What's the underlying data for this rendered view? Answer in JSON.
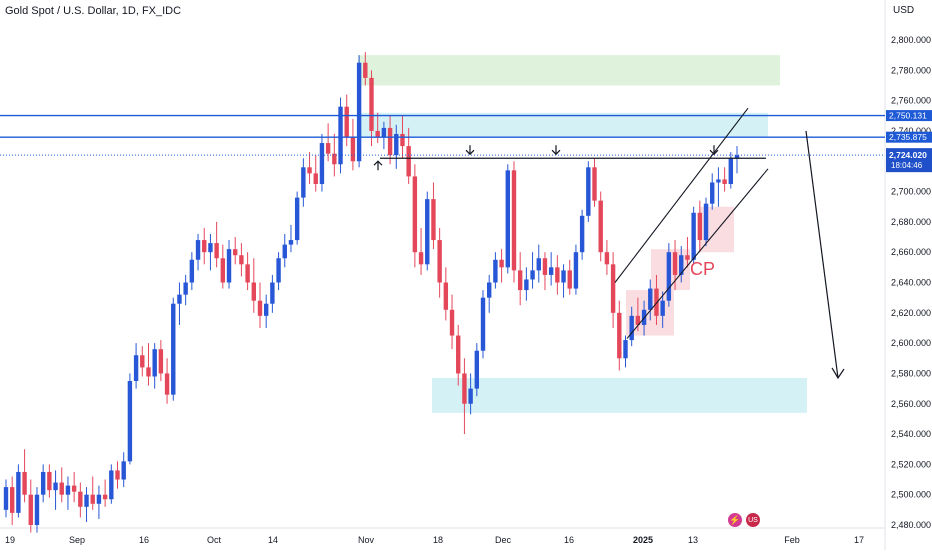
{
  "header": {
    "symbol_title": "Gold Spot / U.S. Dollar, 1D, FX_IDC",
    "currency": "USD"
  },
  "price_axis": {
    "ticks": [
      "2,480.000",
      "2,500.000",
      "2,520.000",
      "2,540.000",
      "2,560.000",
      "2,580.000",
      "2,600.000",
      "2,620.000",
      "2,640.000",
      "2,660.000",
      "2,680.000",
      "2,700.000",
      "2,720.000",
      "2,740.000",
      "2,760.000",
      "2,780.000",
      "2,800.000"
    ]
  },
  "time_axis": {
    "ticks": [
      "19",
      "Sep",
      "16",
      "Oct",
      "14",
      "Nov",
      "18",
      "Dec",
      "16",
      "2025",
      "13",
      "Feb",
      "17"
    ]
  },
  "price_tags": {
    "level_upper": "2,750.131",
    "level_lower": "2,735.875",
    "last_price": "2,724.020",
    "countdown": "18:04:46"
  },
  "annotations": {
    "pattern_label": "CP"
  },
  "colors": {
    "up": "#2757d6",
    "down": "#e5475a",
    "supply_zone": "#d8f0d6",
    "blue_zone": "#cdeff5",
    "pink_box": "#f9d5da",
    "level_line": "#1e5ad6"
  },
  "icons": [
    "lightning-icon",
    "us-flag-icon"
  ],
  "chart_data": {
    "type": "candlestick",
    "title": "Gold Spot / U.S. Dollar, 1D, FX_IDC",
    "ylabel": "USD",
    "ylim": [
      2475,
      2815
    ],
    "xlabel": "",
    "horizontal_levels": [
      2750.131,
      2735.875,
      2724.02
    ],
    "neckline": 2722,
    "zones": [
      {
        "name": "upper-green-zone",
        "y": [
          2770,
          2790
        ]
      },
      {
        "name": "upper-blue-zone",
        "y": [
          2736,
          2752
        ]
      },
      {
        "name": "lower-blue-zone",
        "y": [
          2554,
          2577
        ]
      }
    ],
    "ohlc": [
      [
        2490,
        2510,
        2485,
        2505
      ],
      [
        2505,
        2512,
        2480,
        2488
      ],
      [
        2488,
        2520,
        2485,
        2515
      ],
      [
        2515,
        2530,
        2495,
        2500
      ],
      [
        2500,
        2510,
        2475,
        2480
      ],
      [
        2480,
        2505,
        2475,
        2500
      ],
      [
        2500,
        2520,
        2495,
        2515
      ],
      [
        2515,
        2520,
        2498,
        2503
      ],
      [
        2503,
        2516,
        2490,
        2508
      ],
      [
        2508,
        2518,
        2495,
        2500
      ],
      [
        2500,
        2512,
        2490,
        2506
      ],
      [
        2506,
        2515,
        2495,
        2502
      ],
      [
        2502,
        2508,
        2485,
        2492
      ],
      [
        2492,
        2505,
        2482,
        2500
      ],
      [
        2500,
        2512,
        2490,
        2494
      ],
      [
        2494,
        2506,
        2484,
        2500
      ],
      [
        2500,
        2510,
        2492,
        2497
      ],
      [
        2497,
        2520,
        2494,
        2516
      ],
      [
        2516,
        2522,
        2504,
        2510
      ],
      [
        2510,
        2528,
        2505,
        2522
      ],
      [
        2522,
        2580,
        2520,
        2575
      ],
      [
        2575,
        2600,
        2570,
        2592
      ],
      [
        2592,
        2598,
        2578,
        2584
      ],
      [
        2584,
        2600,
        2572,
        2578
      ],
      [
        2578,
        2600,
        2570,
        2596
      ],
      [
        2596,
        2602,
        2575,
        2580
      ],
      [
        2580,
        2590,
        2560,
        2566
      ],
      [
        2566,
        2630,
        2562,
        2626
      ],
      [
        2626,
        2640,
        2612,
        2632
      ],
      [
        2632,
        2645,
        2625,
        2640
      ],
      [
        2640,
        2660,
        2635,
        2655
      ],
      [
        2655,
        2672,
        2648,
        2668
      ],
      [
        2668,
        2676,
        2652,
        2660
      ],
      [
        2660,
        2672,
        2648,
        2666
      ],
      [
        2666,
        2680,
        2650,
        2656
      ],
      [
        2656,
        2665,
        2636,
        2640
      ],
      [
        2640,
        2668,
        2636,
        2662
      ],
      [
        2662,
        2670,
        2652,
        2658
      ],
      [
        2658,
        2666,
        2644,
        2652
      ],
      [
        2652,
        2660,
        2635,
        2640
      ],
      [
        2640,
        2656,
        2620,
        2628
      ],
      [
        2628,
        2640,
        2610,
        2618
      ],
      [
        2618,
        2632,
        2610,
        2626
      ],
      [
        2626,
        2645,
        2620,
        2640
      ],
      [
        2640,
        2660,
        2635,
        2656
      ],
      [
        2656,
        2672,
        2650,
        2665
      ],
      [
        2665,
        2678,
        2660,
        2668
      ],
      [
        2668,
        2700,
        2665,
        2696
      ],
      [
        2696,
        2722,
        2690,
        2716
      ],
      [
        2716,
        2726,
        2705,
        2712
      ],
      [
        2712,
        2724,
        2700,
        2705
      ],
      [
        2705,
        2738,
        2700,
        2732
      ],
      [
        2732,
        2745,
        2720,
        2725
      ],
      [
        2725,
        2738,
        2710,
        2718
      ],
      [
        2718,
        2762,
        2712,
        2756
      ],
      [
        2756,
        2764,
        2730,
        2736
      ],
      [
        2736,
        2748,
        2714,
        2720
      ],
      [
        2720,
        2790,
        2716,
        2785
      ],
      [
        2785,
        2792,
        2770,
        2775
      ],
      [
        2775,
        2780,
        2730,
        2740
      ],
      [
        2740,
        2752,
        2732,
        2736
      ],
      [
        2736,
        2746,
        2728,
        2742
      ],
      [
        2742,
        2750,
        2718,
        2724
      ],
      [
        2724,
        2744,
        2715,
        2738
      ],
      [
        2738,
        2750,
        2722,
        2730
      ],
      [
        2730,
        2742,
        2705,
        2710
      ],
      [
        2710,
        2718,
        2650,
        2660
      ],
      [
        2660,
        2676,
        2645,
        2652
      ],
      [
        2652,
        2700,
        2648,
        2695
      ],
      [
        2695,
        2706,
        2662,
        2668
      ],
      [
        2668,
        2676,
        2630,
        2640
      ],
      [
        2640,
        2650,
        2615,
        2622
      ],
      [
        2622,
        2632,
        2596,
        2605
      ],
      [
        2605,
        2612,
        2572,
        2580
      ],
      [
        2580,
        2590,
        2540,
        2560
      ],
      [
        2560,
        2580,
        2553,
        2570
      ],
      [
        2570,
        2600,
        2565,
        2595
      ],
      [
        2595,
        2635,
        2590,
        2630
      ],
      [
        2630,
        2645,
        2620,
        2640
      ],
      [
        2640,
        2660,
        2636,
        2655
      ],
      [
        2655,
        2662,
        2640,
        2650
      ],
      [
        2650,
        2718,
        2646,
        2714
      ],
      [
        2714,
        2720,
        2640,
        2648
      ],
      [
        2648,
        2660,
        2625,
        2635
      ],
      [
        2635,
        2650,
        2628,
        2642
      ],
      [
        2642,
        2660,
        2636,
        2648
      ],
      [
        2648,
        2665,
        2640,
        2656
      ],
      [
        2656,
        2660,
        2635,
        2645
      ],
      [
        2645,
        2660,
        2638,
        2650
      ],
      [
        2650,
        2658,
        2632,
        2640
      ],
      [
        2640,
        2652,
        2630,
        2648
      ],
      [
        2648,
        2655,
        2632,
        2636
      ],
      [
        2636,
        2665,
        2632,
        2660
      ],
      [
        2660,
        2688,
        2655,
        2684
      ],
      [
        2684,
        2720,
        2680,
        2716
      ],
      [
        2716,
        2722,
        2690,
        2694
      ],
      [
        2694,
        2700,
        2654,
        2660
      ],
      [
        2660,
        2668,
        2645,
        2652
      ],
      [
        2652,
        2660,
        2610,
        2620
      ],
      [
        2620,
        2628,
        2582,
        2590
      ],
      [
        2590,
        2605,
        2584,
        2602
      ],
      [
        2602,
        2624,
        2598,
        2618
      ],
      [
        2618,
        2630,
        2608,
        2612
      ],
      [
        2612,
        2628,
        2605,
        2622
      ],
      [
        2622,
        2642,
        2615,
        2636
      ],
      [
        2636,
        2645,
        2612,
        2618
      ],
      [
        2618,
        2634,
        2610,
        2628
      ],
      [
        2628,
        2666,
        2624,
        2660
      ],
      [
        2660,
        2668,
        2635,
        2645
      ],
      [
        2645,
        2664,
        2640,
        2658
      ],
      [
        2658,
        2670,
        2650,
        2655
      ],
      [
        2655,
        2690,
        2652,
        2686
      ],
      [
        2686,
        2694,
        2660,
        2668
      ],
      [
        2668,
        2696,
        2664,
        2692
      ],
      [
        2692,
        2712,
        2688,
        2706
      ],
      [
        2706,
        2716,
        2690,
        2708
      ],
      [
        2708,
        2716,
        2700,
        2705
      ],
      [
        2705,
        2726,
        2702,
        2722
      ],
      [
        2722,
        2730,
        2712,
        2724
      ]
    ]
  }
}
